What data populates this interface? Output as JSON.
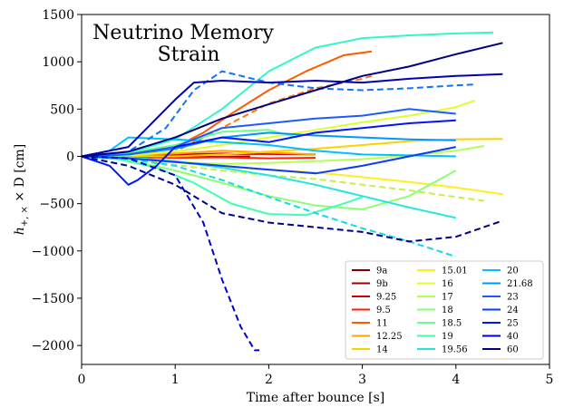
{
  "chart_data": {
    "type": "line",
    "title_lines": [
      "Neutrino Memory",
      "Strain"
    ],
    "xlabel": "Time after bounce [s]",
    "ylabel": "h+,× × D [cm]",
    "ylabel_parts": {
      "h": "h",
      "sub": "+, ×",
      "rest": " × D [cm]"
    },
    "xlim": [
      0,
      5
    ],
    "ylim": [
      -2200,
      1500
    ],
    "xticks": [
      0,
      1,
      2,
      3,
      4,
      5
    ],
    "yticks": [
      -2000,
      -1500,
      -1000,
      -500,
      0,
      500,
      1000,
      1500
    ],
    "ytick_labels": [
      "−2000",
      "−1500",
      "−1000",
      "−500",
      "0",
      "500",
      "1000",
      "1500"
    ],
    "legend_position": "lower-right",
    "legend_columns": [
      [
        "9a",
        "9b",
        "9.25",
        "9.5",
        "11",
        "12.25",
        "14"
      ],
      [
        "15.01",
        "16",
        "17",
        "18",
        "18.5",
        "19",
        "19.56"
      ],
      [
        "20",
        "21.68",
        "23",
        "24",
        "25",
        "40",
        "60"
      ]
    ],
    "series": [
      {
        "name": "9a",
        "color": "#800000",
        "dash": false,
        "x": [
          0,
          0.5,
          1.0,
          1.3,
          1.6,
          1.9
        ],
        "y": [
          0,
          5,
          15,
          20,
          25,
          28
        ]
      },
      {
        "name": "9b",
        "color": "#a00000",
        "dash": false,
        "x": [
          0,
          0.5,
          1.0,
          1.4,
          1.8
        ],
        "y": [
          0,
          -5,
          -10,
          -5,
          0
        ]
      },
      {
        "name": "9.25",
        "color": "#d40000",
        "dash": false,
        "x": [
          0,
          0.5,
          1.0,
          1.5,
          2.0,
          2.5
        ],
        "y": [
          0,
          8,
          20,
          30,
          25,
          20
        ]
      },
      {
        "name": "9.5",
        "color": "#ff2000",
        "dash": false,
        "x": [
          0,
          0.5,
          1.0,
          1.5,
          2.0,
          2.5
        ],
        "y": [
          0,
          -5,
          -15,
          -10,
          -20,
          -15
        ]
      },
      {
        "name": "11",
        "color": "#ff5a00",
        "dash": false,
        "x": [
          0,
          0.3,
          0.6,
          1.0,
          1.3,
          1.6,
          2.0,
          2.4,
          2.8,
          3.1
        ],
        "y": [
          0,
          10,
          40,
          100,
          250,
          450,
          700,
          900,
          1070,
          1110
        ]
      },
      {
        "name": "11 (dashed)",
        "color": "#ff7a10",
        "dash": true,
        "x": [
          0,
          0.5,
          1.0,
          1.5,
          2.0,
          2.5,
          3.0,
          3.1
        ],
        "y": [
          0,
          20,
          50,
          300,
          560,
          720,
          820,
          850
        ]
      },
      {
        "name": "12.25",
        "color": "#ffa500",
        "dash": false,
        "x": [
          0,
          0.5,
          1.0,
          1.5,
          2.0,
          2.5
        ],
        "y": [
          0,
          15,
          30,
          60,
          40,
          20
        ]
      },
      {
        "name": "14",
        "color": "#ffd000",
        "dash": false,
        "x": [
          0,
          0.5,
          1.0,
          1.5,
          2.0,
          2.5,
          3.0,
          3.5,
          4.0,
          4.5
        ],
        "y": [
          0,
          5,
          0,
          20,
          50,
          80,
          120,
          160,
          180,
          185
        ]
      },
      {
        "name": "15.01",
        "color": "#ffee20",
        "dash": false,
        "x": [
          0,
          0.5,
          1.0,
          1.5,
          2.0,
          2.5,
          3.0,
          3.5,
          4.0,
          4.5
        ],
        "y": [
          0,
          -20,
          -60,
          -110,
          -140,
          -170,
          -220,
          -270,
          -330,
          -400
        ]
      },
      {
        "name": "16",
        "color": "#dcff30",
        "dash": false,
        "x": [
          0,
          0.5,
          1.0,
          1.5,
          2.0,
          2.5,
          3.0,
          3.5,
          4.0,
          4.2
        ],
        "y": [
          0,
          10,
          50,
          120,
          200,
          280,
          360,
          430,
          520,
          590
        ]
      },
      {
        "name": "16 (dashed)",
        "color": "#c8f040",
        "dash": true,
        "x": [
          0,
          0.5,
          1.0,
          1.5,
          2.0,
          2.5,
          3.0,
          3.5,
          4.0,
          4.3
        ],
        "y": [
          0,
          -30,
          -90,
          -150,
          -200,
          -240,
          -300,
          -360,
          -430,
          -470
        ]
      },
      {
        "name": "17",
        "color": "#b4ff50",
        "dash": false,
        "x": [
          0,
          0.5,
          1.0,
          1.5,
          2.0,
          2.5,
          3.0,
          3.5,
          4.0,
          4.3
        ],
        "y": [
          0,
          -20,
          -60,
          -80,
          -70,
          -50,
          -30,
          10,
          60,
          110
        ]
      },
      {
        "name": "18",
        "color": "#8cff70",
        "dash": false,
        "x": [
          0,
          0.5,
          1.0,
          1.5,
          2.0,
          2.5,
          3.0,
          3.5,
          4.0
        ],
        "y": [
          0,
          -40,
          -150,
          -280,
          -420,
          -520,
          -560,
          -420,
          -150
        ]
      },
      {
        "name": "18.5",
        "color": "#6cff8c",
        "dash": false,
        "x": [
          0,
          0.5,
          1.0,
          1.5,
          2.0,
          2.3
        ],
        "y": [
          0,
          40,
          120,
          260,
          280,
          200
        ]
      },
      {
        "name": "19",
        "color": "#40ffb0",
        "dash": false,
        "x": [
          0,
          0.4,
          0.8,
          1.2,
          1.6,
          2.0,
          2.4,
          2.8,
          3.0
        ],
        "y": [
          0,
          -30,
          -120,
          -280,
          -500,
          -610,
          -620,
          -500,
          -430
        ]
      },
      {
        "name": "19 (b)",
        "color": "#30f8c8",
        "dash": false,
        "x": [
          0,
          0.5,
          1.0,
          1.5,
          2.0,
          2.5,
          3.0,
          3.5,
          4.0,
          4.4
        ],
        "y": [
          0,
          40,
          180,
          500,
          900,
          1150,
          1250,
          1280,
          1300,
          1310
        ]
      },
      {
        "name": "19.56",
        "color": "#20e8e0",
        "dash": false,
        "x": [
          0,
          0.5,
          1.0,
          1.5,
          2.0,
          2.5,
          3.0,
          3.5,
          4.0
        ],
        "y": [
          0,
          -10,
          -50,
          -120,
          -200,
          -300,
          -420,
          -540,
          -650
        ]
      },
      {
        "name": "19.56 (dashed)",
        "color": "#10dce8",
        "dash": true,
        "x": [
          0,
          0.5,
          1.0,
          1.5,
          2.0,
          2.5,
          3.0,
          3.5,
          4.0
        ],
        "y": [
          0,
          -30,
          -100,
          -250,
          -430,
          -600,
          -760,
          -900,
          -1060
        ]
      },
      {
        "name": "20",
        "color": "#00c0ff",
        "dash": false,
        "x": [
          0,
          0.3,
          0.5,
          1.0,
          1.5,
          2.0,
          2.5,
          3.0,
          3.5,
          4.0
        ],
        "y": [
          0,
          60,
          200,
          180,
          150,
          120,
          60,
          20,
          10,
          0
        ]
      },
      {
        "name": "21.68",
        "color": "#0096ff",
        "dash": false,
        "x": [
          0,
          0.5,
          1.0,
          1.5,
          2.0,
          2.5,
          3.0,
          3.5,
          4.0
        ],
        "y": [
          0,
          20,
          80,
          200,
          250,
          220,
          200,
          180,
          170
        ]
      },
      {
        "name": "21.68 (dashed)",
        "color": "#1470ff",
        "dash": true,
        "x": [
          0,
          0.5,
          0.9,
          1.2,
          1.5,
          2.0,
          2.5,
          3.0,
          3.5,
          4.0,
          4.2
        ],
        "y": [
          0,
          50,
          300,
          700,
          900,
          780,
          720,
          700,
          720,
          750,
          760
        ]
      },
      {
        "name": "23",
        "color": "#1e5aff",
        "dash": false,
        "x": [
          0,
          0.5,
          1.0,
          1.5,
          2.0,
          2.5,
          3.0,
          3.5,
          4.0
        ],
        "y": [
          0,
          20,
          100,
          300,
          350,
          400,
          430,
          500,
          450
        ]
      },
      {
        "name": "24",
        "color": "#0a3cff",
        "dash": false,
        "x": [
          0,
          0.5,
          1.0,
          1.5,
          2.0,
          2.5,
          3.0,
          3.5,
          4.0
        ],
        "y": [
          0,
          -20,
          -60,
          -100,
          -140,
          -180,
          -100,
          0,
          100
        ]
      },
      {
        "name": "25",
        "color": "#0014ff",
        "dash": false,
        "x": [
          0,
          0.3,
          0.5,
          0.6,
          0.8,
          1.0,
          1.5,
          2.0,
          2.5,
          3.0,
          3.5,
          4.0
        ],
        "y": [
          0,
          -100,
          -300,
          -250,
          -100,
          100,
          200,
          150,
          250,
          300,
          350,
          380
        ]
      },
      {
        "name": "40",
        "color": "#0000d0",
        "dash": true,
        "x": [
          0,
          0.5,
          1.0,
          1.3,
          1.5,
          1.7,
          1.85,
          1.9
        ],
        "y": [
          0,
          -20,
          -200,
          -700,
          -1300,
          -1800,
          -2050,
          -2050
        ]
      },
      {
        "name": "40 (b)",
        "color": "#0000b4",
        "dash": false,
        "x": [
          0,
          0.5,
          1.0,
          1.2,
          1.5,
          2.0,
          2.5,
          3.0,
          3.5,
          4.0,
          4.5
        ],
        "y": [
          0,
          100,
          600,
          780,
          800,
          780,
          800,
          780,
          820,
          850,
          870
        ]
      },
      {
        "name": "60",
        "color": "#00008c",
        "dash": true,
        "x": [
          0,
          0.5,
          1.0,
          1.5,
          2.0,
          2.5,
          3.0,
          3.5,
          4.0,
          4.5
        ],
        "y": [
          0,
          -100,
          -300,
          -600,
          -700,
          -750,
          -800,
          -900,
          -850,
          -680
        ]
      },
      {
        "name": "60 (b)",
        "color": "#000080",
        "dash": false,
        "x": [
          0,
          0.5,
          1.0,
          1.5,
          2.0,
          2.5,
          3.0,
          3.5,
          4.0,
          4.5
        ],
        "y": [
          0,
          50,
          200,
          400,
          550,
          700,
          850,
          950,
          1080,
          1200
        ]
      }
    ],
    "legend_colors": {
      "9a": "#800000",
      "9b": "#a00000",
      "9.25": "#d40000",
      "9.5": "#ff2000",
      "11": "#ff5a00",
      "12.25": "#ffa500",
      "14": "#ffd000",
      "15.01": "#ffee20",
      "16": "#dcff30",
      "17": "#b4ff50",
      "18": "#8cff70",
      "18.5": "#6cff8c",
      "19": "#40ffb0",
      "19.56": "#20e8e0",
      "20": "#00c0ff",
      "21.68": "#0096ff",
      "23": "#1e5aff",
      "24": "#0a3cff",
      "25": "#0014ff",
      "40": "#0000d0",
      "60": "#00008c"
    }
  }
}
